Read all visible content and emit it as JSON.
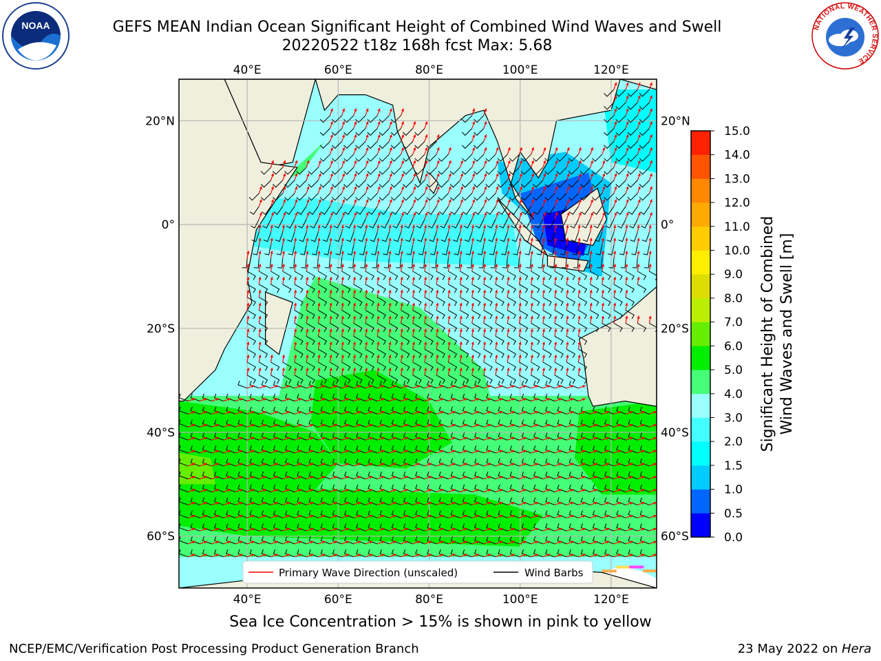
{
  "title": {
    "line1": "GEFS MEAN Indian Ocean Significant Height of Combined Wind Waves and Swell",
    "line2": "20220522 t18z 168h fcst   Max: 5.68"
  },
  "map": {
    "lon_ticks": [
      "40°E",
      "60°E",
      "80°E",
      "100°E",
      "120°E"
    ],
    "lon_values": [
      40,
      60,
      80,
      100,
      120
    ],
    "lat_ticks": [
      "20°N",
      "0°",
      "20°S",
      "40°S",
      "60°S"
    ],
    "lat_values": [
      20,
      0,
      -20,
      -40,
      -60
    ],
    "lon_range": [
      25,
      130
    ],
    "lat_range": [
      -70,
      28
    ],
    "colors": {
      "land": "#efefdd",
      "ice": "#ffffff",
      "ice_edge": [
        "#ff44ff",
        "#ffaa44",
        "#ffdd55"
      ],
      "coast": "#000000",
      "wave_arrow": "#ff0000",
      "wind_barb": "#000000",
      "grid": "#b5b5b5"
    }
  },
  "legend": {
    "wave_label": "Primary Wave Direction (unscaled)",
    "wind_label": "Wind Barbs"
  },
  "colorbar": {
    "label_line1": "Significant Height of Combined",
    "label_line2": "Wind Waves and Swell [m]",
    "ticks": [
      "0.0",
      "0.5",
      "1.0",
      "1.5",
      "2.0",
      "3.0",
      "4.0",
      "5.0",
      "6.0",
      "7.0",
      "8.0",
      "9.0",
      "10.0",
      "11.0",
      "12.0",
      "13.0",
      "14.0",
      "15.0"
    ],
    "colors": [
      "#0000ff",
      "#0066ff",
      "#00ccff",
      "#00ffff",
      "#44ffff",
      "#99ffff",
      "#44ff77",
      "#00ee00",
      "#66ee00",
      "#bbee00",
      "#dddd00",
      "#ffee00",
      "#ffcc00",
      "#ffaa00",
      "#ff8800",
      "#ff5500",
      "#ff2200"
    ]
  },
  "ice_caption": "Sea Ice Concentration > 15% is shown in pink to yellow",
  "footer": {
    "left": "NCEP/EMC/Verification Post Processing Product Generation Branch",
    "right_prefix": "23 May 2022 on ",
    "right_host": "Hera"
  },
  "logos": {
    "noaa_text": "NOAA",
    "nws_text": "NATIONAL WEATHER SERVICE"
  }
}
